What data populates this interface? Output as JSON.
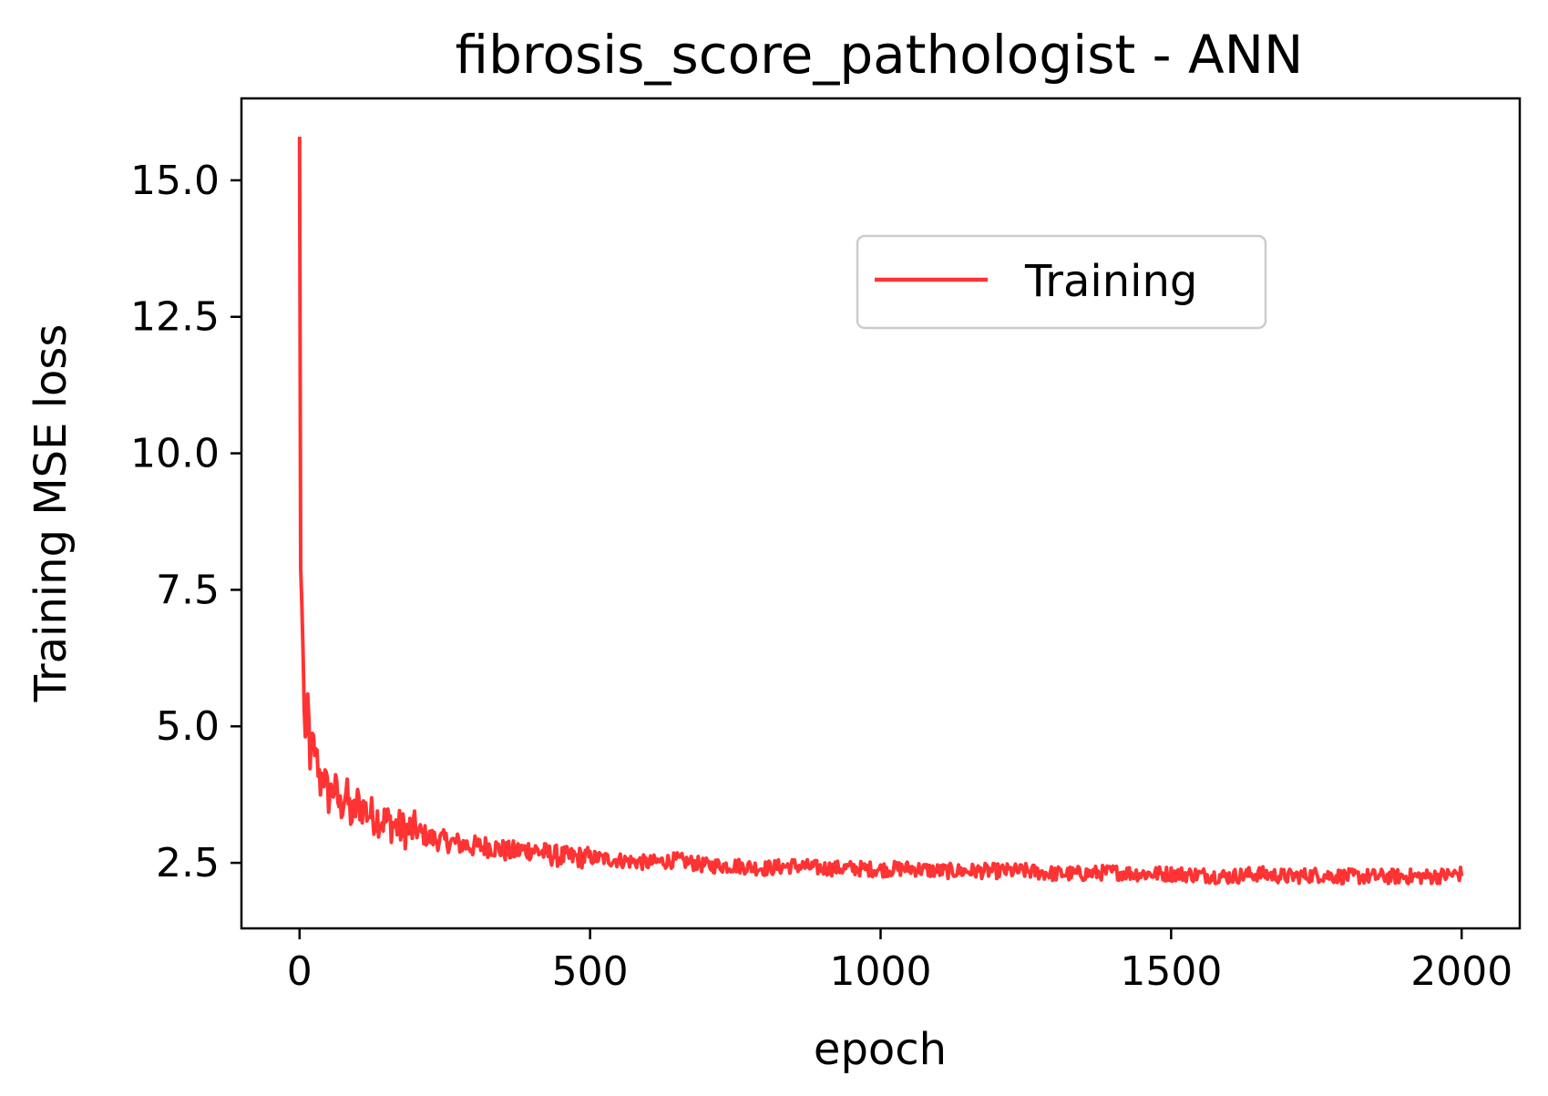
{
  "chart_data": {
    "type": "line",
    "title": "fibrosis_score_pathologist - ANN",
    "xlabel": "epoch",
    "ylabel": "Training MSE loss",
    "xlim": [
      -100,
      2100
    ],
    "ylim": [
      1.3,
      16.5
    ],
    "xticks": [
      0,
      500,
      1000,
      1500,
      2000
    ],
    "xtick_labels": [
      "0",
      "500",
      "1000",
      "1500",
      "2000"
    ],
    "yticks": [
      2.5,
      5.0,
      7.5,
      10.0,
      12.5,
      15.0
    ],
    "ytick_labels": [
      "2.5",
      "5.0",
      "7.5",
      "10.0",
      "12.5",
      "15.0"
    ],
    "grid": false,
    "legend": {
      "position": "upper-right",
      "entries": [
        "Training"
      ]
    },
    "series": [
      {
        "name": "Training",
        "color": "#ff3333",
        "x": [
          0,
          2,
          5,
          8,
          10,
          14,
          18,
          22,
          25,
          30,
          35,
          40,
          50,
          60,
          70,
          80,
          90,
          100,
          120,
          140,
          160,
          180,
          200,
          225,
          250,
          275,
          300,
          330,
          360,
          400,
          430,
          460,
          500,
          550,
          600,
          650,
          700,
          750,
          800,
          850,
          900,
          950,
          1000,
          1050,
          1100,
          1150,
          1200,
          1250,
          1300,
          1350,
          1400,
          1450,
          1500,
          1550,
          1600,
          1650,
          1700,
          1750,
          1800,
          1850,
          1900,
          1950,
          2000
        ],
        "values": [
          15.8,
          7.9,
          6.9,
          5.3,
          4.7,
          5.5,
          4.1,
          5.1,
          4.3,
          4.4,
          3.9,
          4.2,
          3.7,
          3.9,
          3.5,
          3.8,
          3.3,
          3.6,
          3.4,
          3.3,
          3.2,
          3.1,
          3.1,
          2.95,
          2.9,
          2.85,
          2.8,
          2.8,
          2.7,
          2.75,
          2.65,
          2.6,
          2.6,
          2.55,
          2.5,
          2.55,
          2.45,
          2.45,
          2.4,
          2.45,
          2.4,
          2.4,
          2.38,
          2.4,
          2.35,
          2.35,
          2.35,
          2.35,
          2.3,
          2.3,
          2.33,
          2.3,
          2.3,
          2.28,
          2.25,
          2.3,
          2.25,
          2.28,
          2.25,
          2.25,
          2.25,
          2.25,
          2.3
        ]
      }
    ]
  }
}
